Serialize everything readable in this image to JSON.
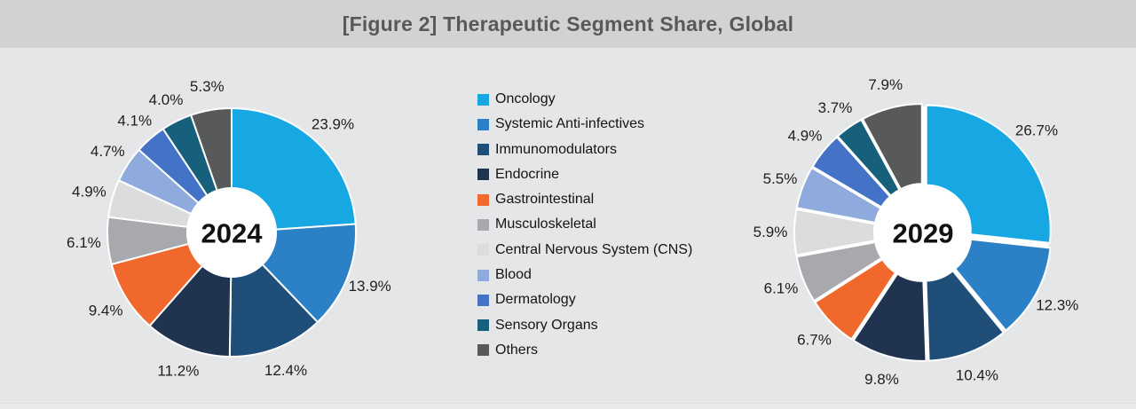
{
  "header": {
    "title": "[Figure 2] Therapeutic Segment Share, Global"
  },
  "chart_data": {
    "type": "pie",
    "subtype": "donut",
    "title": "[Figure 2] Therapeutic Segment Share, Global",
    "categories": [
      "Oncology",
      "Systemic Anti-infectives",
      "Immunomodulators",
      "Endocrine",
      "Gastrointestinal",
      "Musculoskeletal",
      "Central Nervous System (CNS)",
      "Blood",
      "Dermatology",
      "Sensory Organs",
      "Others"
    ],
    "colors": [
      "#17A8E4",
      "#2B80C6",
      "#1F4E79",
      "#21344F",
      "#F1682C",
      "#A7A9AC",
      "#DADCDD",
      "#8FAADC",
      "#4472C7",
      "#17607C",
      "#58595B"
    ],
    "series": [
      {
        "name": "2024",
        "values": [
          23.9,
          13.9,
          12.4,
          11.2,
          9.4,
          6.1,
          4.9,
          4.7,
          4.1,
          4.0,
          5.3
        ],
        "exploded": false
      },
      {
        "name": "2029",
        "values": [
          26.7,
          12.3,
          10.4,
          9.8,
          6.7,
          6.1,
          5.9,
          5.5,
          4.9,
          3.7,
          7.9
        ],
        "exploded": true
      }
    ],
    "label_format": "percent-1-decimal",
    "labels_position": "outside-end",
    "legend_position": "center-between-charts",
    "background": "#E5E6E7",
    "header_background": "#D0D2D3",
    "slice_border_color": "#FFFFFF",
    "label_color": "#1E1E1E"
  }
}
